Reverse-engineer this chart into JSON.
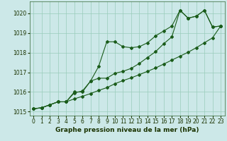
{
  "xlabel": "Graphe pression niveau de la mer (hPa)",
  "x_ticks": [
    0,
    1,
    2,
    3,
    4,
    5,
    6,
    7,
    8,
    9,
    10,
    11,
    12,
    13,
    14,
    15,
    16,
    17,
    18,
    19,
    20,
    21,
    22,
    23
  ],
  "ylim": [
    1014.8,
    1020.6
  ],
  "xlim": [
    -0.5,
    23.5
  ],
  "yticks": [
    1015,
    1016,
    1017,
    1018,
    1019,
    1020
  ],
  "bg_color": "#cce8e8",
  "grid_color": "#99ccbb",
  "line_color": "#1a5c1a",
  "line1": [
    1015.15,
    1015.2,
    1015.35,
    1015.5,
    1015.5,
    1016.0,
    1016.0,
    1016.55,
    1017.3,
    1018.55,
    1018.55,
    1018.3,
    1018.25,
    1018.3,
    1018.5,
    1018.85,
    1019.1,
    1019.35,
    1020.15,
    1019.75,
    1019.85,
    1020.15,
    1019.3,
    1019.35
  ],
  "line2": [
    1015.15,
    1015.2,
    1015.35,
    1015.5,
    1015.5,
    1015.95,
    1016.05,
    1016.55,
    1016.7,
    1016.7,
    1016.95,
    1017.05,
    1017.2,
    1017.45,
    1017.75,
    1018.05,
    1018.45,
    1018.8,
    1020.15,
    1019.75,
    1019.85,
    1020.15,
    1019.3,
    1019.35
  ],
  "line3": [
    1015.15,
    1015.2,
    1015.35,
    1015.5,
    1015.5,
    1015.65,
    1015.78,
    1015.92,
    1016.08,
    1016.22,
    1016.42,
    1016.58,
    1016.72,
    1016.88,
    1017.05,
    1017.22,
    1017.42,
    1017.62,
    1017.82,
    1018.02,
    1018.25,
    1018.5,
    1018.75,
    1019.35
  ],
  "markersize": 2.0,
  "linewidth": 0.8,
  "label_fontsize": 6.5,
  "tick_fontsize": 5.5
}
